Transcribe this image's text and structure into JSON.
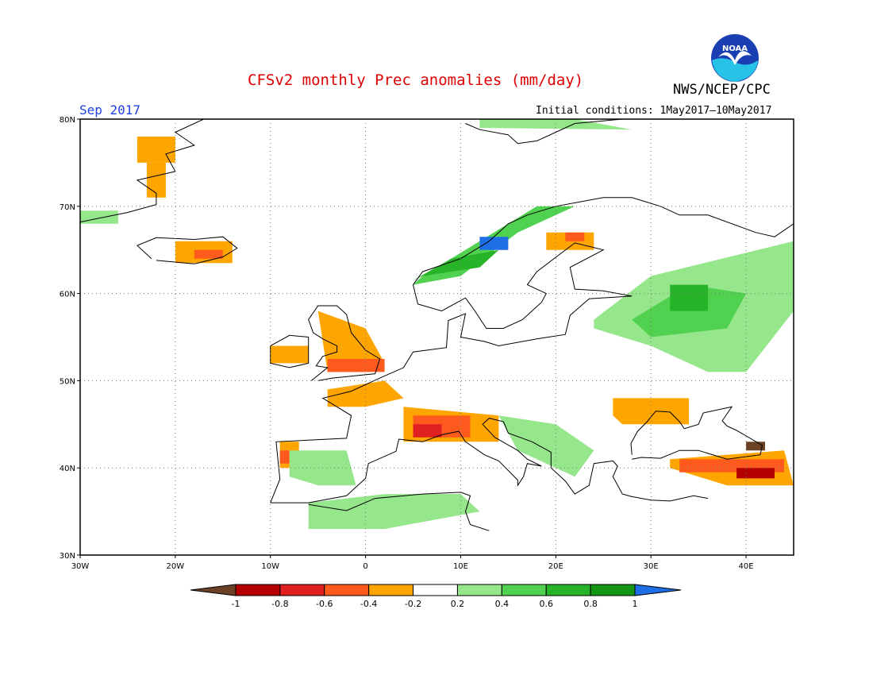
{
  "header": {
    "title": "CFSv2 monthly Prec anomalies (mm/day)",
    "agency": "NWS/NCEP/CPC",
    "logo_text": "NOAA",
    "month": "Sep 2017",
    "initial_conditions": "Initial conditions: 1May2017–10May2017"
  },
  "map": {
    "lon_range": [
      -30,
      45
    ],
    "lat_range": [
      30,
      80
    ],
    "lat_ticks": [
      {
        "value": 80,
        "label": "80N"
      },
      {
        "value": 70,
        "label": "70N"
      },
      {
        "value": 60,
        "label": "60N"
      },
      {
        "value": 50,
        "label": "50N"
      },
      {
        "value": 40,
        "label": "40N"
      },
      {
        "value": 30,
        "label": "30N"
      }
    ],
    "lon_ticks": [
      {
        "value": -30,
        "label": "30W"
      },
      {
        "value": -20,
        "label": "20W"
      },
      {
        "value": -10,
        "label": "10W"
      },
      {
        "value": 0,
        "label": "0"
      },
      {
        "value": 10,
        "label": "10E"
      },
      {
        "value": 20,
        "label": "20E"
      },
      {
        "value": 30,
        "label": "30E"
      },
      {
        "value": 40,
        "label": "40E"
      }
    ],
    "grid_dotted": true
  },
  "colorbar": {
    "levels": [
      "-1",
      "-0.8",
      "-0.6",
      "-0.4",
      "-0.2",
      "0.2",
      "0.4",
      "0.6",
      "0.8",
      "1"
    ],
    "colors": [
      "#6b4226",
      "#b40000",
      "#e02020",
      "#ff5a1e",
      "#ffa500",
      "#ffffff",
      "#96e68c",
      "#50d250",
      "#28b428",
      "#149614",
      "#1e6ee6"
    ]
  },
  "anomaly_regions": [
    {
      "name": "svalbard-north",
      "color": "#96e68c",
      "lons": [
        12,
        22,
        28,
        12
      ],
      "lats": [
        80,
        80,
        78.8,
        79
      ]
    },
    {
      "name": "greenland-east",
      "color": "#ffa500",
      "lons": [
        -24,
        -20,
        -20,
        -24
      ],
      "lats": [
        78,
        78,
        75,
        75
      ]
    },
    {
      "name": "greenland-coast",
      "color": "#ffa500",
      "lons": [
        -23,
        -21,
        -21,
        -23
      ],
      "lats": [
        75,
        75,
        71,
        71
      ]
    },
    {
      "name": "denmark-strait",
      "color": "#96e68c",
      "lons": [
        -30,
        -26,
        -26,
        -30
      ],
      "lats": [
        69.5,
        69.5,
        68,
        68
      ]
    },
    {
      "name": "iceland-south",
      "color": "#ffa500",
      "lons": [
        -20,
        -14,
        -14,
        -20
      ],
      "lats": [
        66,
        66,
        63.5,
        63.5
      ]
    },
    {
      "name": "iceland-core",
      "color": "#ff5a1e",
      "lons": [
        -18,
        -15,
        -15,
        -18
      ],
      "lats": [
        65,
        65,
        64,
        64
      ]
    },
    {
      "name": "norway-coast",
      "color": "#50d250",
      "lons": [
        5,
        10,
        16,
        22,
        18,
        12,
        6
      ],
      "lats": [
        61,
        62,
        67,
        70,
        70,
        66,
        62
      ]
    },
    {
      "name": "norway-core",
      "color": "#28b428",
      "lons": [
        6,
        12,
        14,
        9,
        5
      ],
      "lats": [
        62,
        63,
        65,
        64,
        61.5
      ]
    },
    {
      "name": "norway-peak",
      "color": "#1e6ee6",
      "lons": [
        12,
        15,
        15,
        12
      ],
      "lats": [
        66.5,
        66.5,
        65,
        65
      ]
    },
    {
      "name": "russia-west-wet",
      "color": "#96e68c",
      "lons": [
        24,
        30,
        45,
        45,
        40,
        36,
        30,
        24
      ],
      "lats": [
        57,
        62,
        66,
        58,
        51,
        51,
        54,
        56
      ]
    },
    {
      "name": "russia-core-wet",
      "color": "#50d250",
      "lons": [
        28,
        34,
        40,
        38,
        30
      ],
      "lats": [
        57,
        61,
        60,
        56,
        55
      ]
    },
    {
      "name": "russia-peak-wet",
      "color": "#28b428",
      "lons": [
        32,
        36,
        36,
        32
      ],
      "lats": [
        61,
        61,
        58,
        58
      ]
    },
    {
      "name": "finland-dry",
      "color": "#ffa500",
      "lons": [
        19,
        24,
        24,
        19
      ],
      "lats": [
        67,
        67,
        65,
        65
      ]
    },
    {
      "name": "finland-dry-core",
      "color": "#ff5a1e",
      "lons": [
        21,
        23,
        23,
        21
      ],
      "lats": [
        67,
        67,
        66,
        66
      ]
    },
    {
      "name": "britain-dry",
      "color": "#ffa500",
      "lons": [
        -5,
        0,
        2,
        0,
        -4
      ],
      "lats": [
        58,
        56,
        52,
        51,
        51
      ]
    },
    {
      "name": "britain-dry-core",
      "color": "#ff5a1e",
      "lons": [
        -4,
        2,
        2,
        -4
      ],
      "lats": [
        52.5,
        52.5,
        51,
        51
      ]
    },
    {
      "name": "ireland-dry",
      "color": "#ffa500",
      "lons": [
        -10,
        -6,
        -6,
        -10
      ],
      "lats": [
        54,
        54,
        52,
        52
      ]
    },
    {
      "name": "france-dry",
      "color": "#ffa500",
      "lons": [
        -4,
        2,
        4,
        0,
        -4
      ],
      "lats": [
        49,
        50,
        48,
        47,
        47
      ]
    },
    {
      "name": "alps-dry",
      "color": "#ffa500",
      "lons": [
        4,
        14,
        14,
        8,
        4
      ],
      "lats": [
        47,
        46,
        43,
        43,
        43
      ]
    },
    {
      "name": "alps-dry-core",
      "color": "#ff5a1e",
      "lons": [
        5,
        11,
        11,
        5
      ],
      "lats": [
        46,
        46,
        43.5,
        43.5
      ]
    },
    {
      "name": "alps-dry-peak",
      "color": "#e02020",
      "lons": [
        5,
        8,
        8,
        5
      ],
      "lats": [
        45,
        45,
        43.5,
        43.5
      ]
    },
    {
      "name": "iberia-west-dry",
      "color": "#ffa500",
      "lons": [
        -9,
        -7,
        -7,
        -9
      ],
      "lats": [
        43,
        43,
        40,
        40
      ]
    },
    {
      "name": "iberia-west-core",
      "color": "#ff5a1e",
      "lons": [
        -9,
        -8,
        -8,
        -9
      ],
      "lats": [
        42,
        42,
        40.5,
        40.5
      ]
    },
    {
      "name": "iberia-wet",
      "color": "#96e68c",
      "lons": [
        -8,
        -2,
        -1,
        -5,
        -8
      ],
      "lats": [
        42,
        42,
        38,
        38,
        39
      ]
    },
    {
      "name": "north-africa-wet",
      "color": "#96e68c",
      "lons": [
        -6,
        2,
        10,
        12,
        2,
        -6
      ],
      "lats": [
        36,
        37,
        37,
        35,
        33,
        33
      ]
    },
    {
      "name": "balkans-wet",
      "color": "#96e68c",
      "lons": [
        14,
        20,
        24,
        22,
        16
      ],
      "lats": [
        46,
        45,
        42,
        39,
        42
      ]
    },
    {
      "name": "ukraine-dry",
      "color": "#ffa500",
      "lons": [
        26,
        34,
        34,
        27,
        26
      ],
      "lats": [
        48,
        48,
        45,
        45,
        46
      ]
    },
    {
      "name": "turkey-dry",
      "color": "#ffa500",
      "lons": [
        32,
        44,
        45,
        38,
        32
      ],
      "lats": [
        41,
        42,
        38,
        38,
        40
      ]
    },
    {
      "name": "turkey-dry-core",
      "color": "#ff5a1e",
      "lons": [
        33,
        44,
        44,
        33
      ],
      "lats": [
        41,
        41,
        39.5,
        39.5
      ]
    },
    {
      "name": "caucasus-dry",
      "color": "#b40000",
      "lons": [
        39,
        43,
        43,
        39
      ],
      "lats": [
        40,
        40,
        38.8,
        38.8
      ]
    },
    {
      "name": "caucasus-peak",
      "color": "#6b4226",
      "lons": [
        40,
        42,
        42,
        40
      ],
      "lats": [
        43,
        43,
        42,
        42
      ]
    }
  ]
}
